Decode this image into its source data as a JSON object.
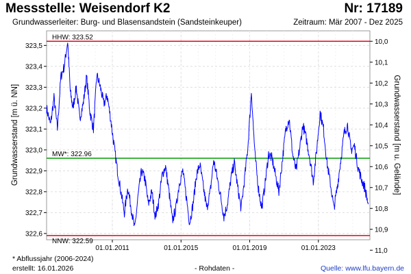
{
  "header": {
    "title": "Messstelle: Weisendorf K2",
    "station_nr": "Nr: 17189",
    "aquifer": "Grundwasserleiter:   Burg- und Blasensandstein (Sandsteinkeuper)",
    "period": "Zeitraum: Mär 2007 - Dez 2025"
  },
  "footer": {
    "footnote": "* Abflussjahr (2006-2024)",
    "created": "erstellt:  16.01.2026",
    "rawdata": "- Rohdaten -",
    "source": "Quelle: www.lfu.bayern.de"
  },
  "chart_data": {
    "type": "line",
    "ylabel_left": "Grundwasserstand [m ü. NN]",
    "ylabel_right": "Grundwasserstand [m u. Gelände]",
    "ylim": [
      322.57,
      323.57
    ],
    "yticks_left": [
      "323,5",
      "323,4",
      "323,3",
      "323,2",
      "323,1",
      "323,0",
      "322,9",
      "322,8",
      "322,7",
      "322,6"
    ],
    "yticks_left_values": [
      323.5,
      323.4,
      323.3,
      323.2,
      323.1,
      323.0,
      322.9,
      322.8,
      322.7,
      322.6
    ],
    "yticks_right": [
      "10,0",
      "10,1",
      "10,2",
      "10,3",
      "10,4",
      "10,5",
      "10,6",
      "10,7",
      "10,8",
      "10,9",
      "11,0"
    ],
    "yticks_right_values": [
      10.0,
      10.1,
      10.2,
      10.3,
      10.4,
      10.5,
      10.6,
      10.7,
      10.8,
      10.9,
      11.0
    ],
    "right_axis_reference_level": 333.52,
    "xticks": [
      "01.01.2011",
      "01.01.2015",
      "01.01.2019",
      "01.01.2023"
    ],
    "xticks_values": [
      2011.0,
      2015.0,
      2019.0,
      2023.0
    ],
    "xlim": [
      2007.17,
      2026.0
    ],
    "grid": true,
    "reference_lines": [
      {
        "label": "HHW: 323.52",
        "value": 323.52,
        "color": "#e8001c"
      },
      {
        "label": "MW*: 322.96",
        "value": 322.96,
        "color": "#009a00"
      },
      {
        "label": "NNW: 322.59",
        "value": 322.59,
        "color": "#e8001c"
      }
    ],
    "series": [
      {
        "color": "#0000ff",
        "x": [
          2007.17,
          2007.4,
          2007.6,
          2007.8,
          2008.0,
          2008.2,
          2008.4,
          2008.55,
          2008.7,
          2008.9,
          2009.1,
          2009.3,
          2009.5,
          2009.7,
          2009.9,
          2010.1,
          2010.3,
          2010.5,
          2010.7,
          2010.9,
          2011.1,
          2011.3,
          2011.5,
          2011.7,
          2011.9,
          2012.1,
          2012.3,
          2012.5,
          2012.7,
          2012.9,
          2013.1,
          2013.3,
          2013.5,
          2013.7,
          2013.9,
          2014.1,
          2014.3,
          2014.5,
          2014.7,
          2014.9,
          2015.1,
          2015.3,
          2015.5,
          2015.7,
          2015.9,
          2016.1,
          2016.3,
          2016.5,
          2016.7,
          2016.9,
          2017.1,
          2017.3,
          2017.5,
          2017.7,
          2017.9,
          2018.1,
          2018.3,
          2018.5,
          2018.7,
          2018.9,
          2019.1,
          2019.3,
          2019.5,
          2019.7,
          2019.9,
          2020.1,
          2020.3,
          2020.5,
          2020.7,
          2020.9,
          2021.1,
          2021.3,
          2021.5,
          2021.7,
          2021.9,
          2022.1,
          2022.3,
          2022.5,
          2022.7,
          2022.9,
          2023.1,
          2023.3,
          2023.5,
          2023.7,
          2023.9,
          2024.1,
          2024.3,
          2024.5,
          2024.7,
          2024.9,
          2025.1,
          2025.3,
          2025.5,
          2025.7,
          2025.9
        ],
        "y": [
          323.2,
          323.12,
          323.25,
          323.1,
          323.35,
          323.4,
          323.52,
          323.28,
          323.2,
          323.3,
          323.15,
          323.22,
          323.35,
          323.18,
          323.1,
          323.36,
          323.3,
          323.22,
          323.26,
          323.15,
          323.02,
          322.9,
          322.8,
          322.7,
          322.82,
          322.72,
          322.62,
          322.78,
          322.9,
          322.86,
          322.74,
          322.8,
          322.68,
          322.75,
          322.88,
          322.92,
          322.8,
          322.66,
          322.72,
          322.84,
          322.9,
          322.78,
          322.65,
          322.74,
          322.88,
          322.93,
          322.82,
          322.72,
          322.8,
          322.95,
          322.87,
          322.78,
          322.68,
          322.74,
          322.86,
          322.94,
          322.82,
          322.72,
          322.86,
          323.02,
          323.28,
          322.98,
          322.82,
          322.72,
          322.84,
          322.98,
          322.96,
          322.88,
          322.8,
          322.95,
          323.1,
          323.15,
          322.98,
          322.9,
          323.0,
          323.12,
          323.05,
          322.96,
          322.85,
          323.0,
          323.18,
          323.1,
          322.94,
          322.84,
          322.72,
          322.82,
          322.95,
          323.08,
          323.12,
          323.0,
          323.02,
          322.92,
          322.86,
          322.82,
          322.74
        ]
      }
    ]
  }
}
